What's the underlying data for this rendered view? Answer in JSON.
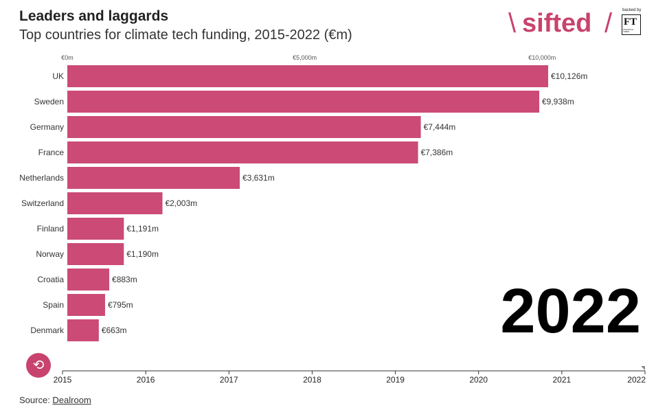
{
  "header": {
    "title": "Leaders and laggards",
    "subtitle": "Top countries for climate tech funding, 2015-2022 (€m)"
  },
  "brand": {
    "slash_left": "\\",
    "wordmark": "sifted",
    "slash_right": "/",
    "backed_by": "backed by",
    "ft_letters": "FT",
    "ft_caption": "FINANCIAL TIMES"
  },
  "colors": {
    "accent": "#c8436d",
    "bar": "#cb4a76",
    "text": "#222222"
  },
  "year_display": "2022",
  "replay_icon": "⟲",
  "footer": {
    "source_prefix": "Source: ",
    "source_link": "Dealroom"
  },
  "chart_data": {
    "type": "bar",
    "orientation": "horizontal",
    "title": "Leaders and laggards",
    "subtitle": "Top countries for climate tech funding, 2015-2022 (€m)",
    "categories": [
      "UK",
      "Sweden",
      "Germany",
      "France",
      "Netherlands",
      "Switzerland",
      "Finland",
      "Norway",
      "Croatia",
      "Spain",
      "Denmark"
    ],
    "values": [
      10126,
      9938,
      7444,
      7386,
      3631,
      2003,
      1191,
      1190,
      883,
      795,
      663
    ],
    "value_labels": [
      "€10,126m",
      "€9,938m",
      "€7,444m",
      "€7,386m",
      "€3,631m",
      "€2,003m",
      "€1,191m",
      "€1,190m",
      "€883m",
      "€795m",
      "€663m"
    ],
    "xlim": [
      0,
      10126
    ],
    "x_ticks": [
      0,
      5000,
      10000
    ],
    "x_tick_labels": [
      "€0m",
      "€5,000m",
      "€10,000m"
    ],
    "timeline": {
      "years": [
        "2015",
        "2016",
        "2017",
        "2018",
        "2019",
        "2020",
        "2021",
        "2022"
      ],
      "current": "2022"
    }
  }
}
